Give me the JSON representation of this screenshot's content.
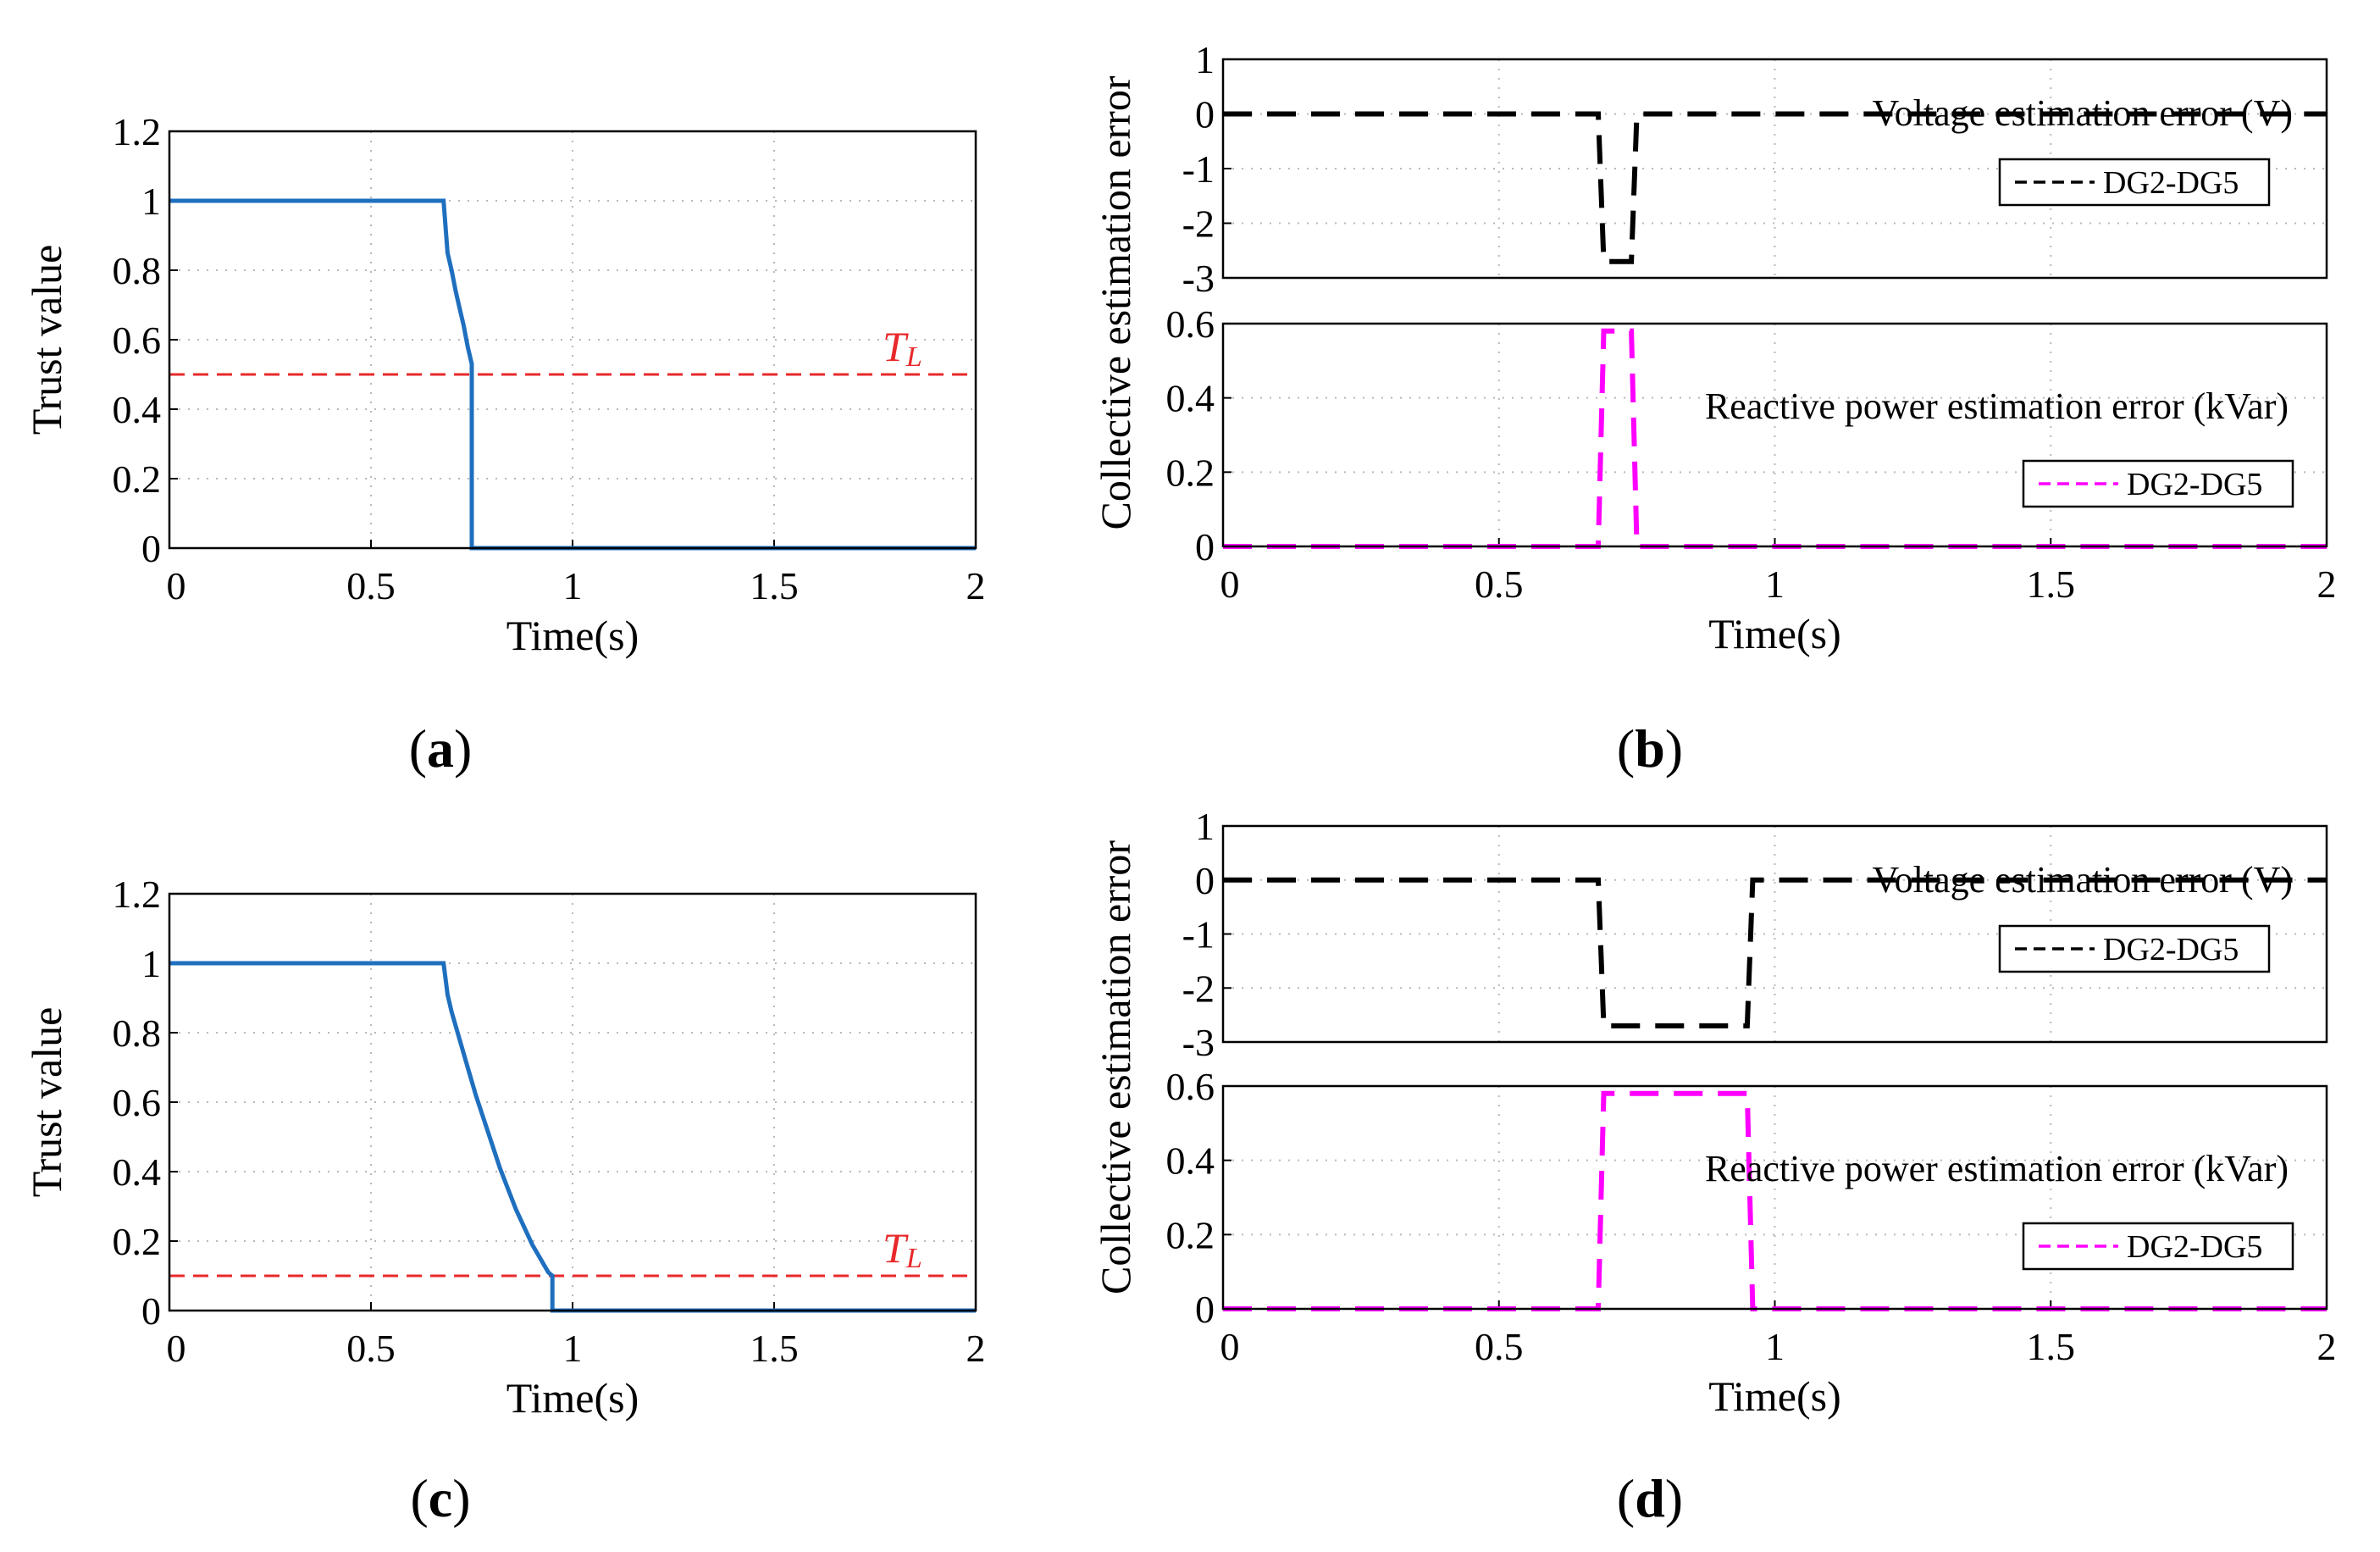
{
  "captions": [
    "(a)",
    "(b)",
    "(c)",
    "(d)"
  ],
  "chart_data": [
    {
      "id": "a",
      "type": "line",
      "xlabel": "Time(s)",
      "ylabel": "Trust value",
      "xlim": [
        0,
        2
      ],
      "ylim": [
        0,
        1.2
      ],
      "xticks": [
        0,
        0.5,
        1,
        1.5,
        2
      ],
      "xtick_labels": [
        "0",
        "0.5",
        "1",
        "1.5",
        "2"
      ],
      "yticks": [
        0,
        0.2,
        0.4,
        0.6,
        0.8,
        1,
        1.2
      ],
      "ytick_labels": [
        "0",
        "0.2",
        "0.4",
        "0.6",
        "0.8",
        "1",
        "1.2"
      ],
      "grid": true,
      "series": [
        {
          "color": "#1f6fbf",
          "style": "solid",
          "x": [
            0,
            0.68,
            0.69,
            0.7,
            0.71,
            0.72,
            0.73,
            0.74,
            0.75,
            0.75,
            2
          ],
          "y": [
            1,
            1,
            0.85,
            0.8,
            0.74,
            0.69,
            0.64,
            0.58,
            0.53,
            0,
            0
          ]
        }
      ],
      "threshold": {
        "y": 0.5,
        "color": "#e8292b",
        "label_main": "T",
        "label_sub": "L"
      }
    },
    {
      "id": "b",
      "type": "line",
      "ylabel": "Collective estimation error",
      "subplots": [
        {
          "xlim": [
            0,
            2
          ],
          "ylim": [
            -3,
            1
          ],
          "yticks": [
            -3,
            -2,
            -1,
            0,
            1
          ],
          "ytick_labels": [
            "-3",
            "-2",
            "-1",
            "0",
            "1"
          ],
          "annotation": "Voltage estimation error (V)",
          "legend": "DG2-DG5",
          "grid": true,
          "series": [
            {
              "name": "DG2-DG5",
              "color": "#000000",
              "style": "dashed",
              "x": [
                0,
                0.68,
                0.69,
                0.74,
                0.75,
                2
              ],
              "y": [
                0,
                0,
                -2.7,
                -2.7,
                0,
                0
              ]
            }
          ]
        },
        {
          "xlim": [
            0,
            2
          ],
          "ylim": [
            0,
            0.6
          ],
          "yticks": [
            0,
            0.2,
            0.4,
            0.6
          ],
          "ytick_labels": [
            "0",
            "0.2",
            "0.4",
            "0.6"
          ],
          "annotation": "Reactive power estimation error (kVar)",
          "legend": "DG2-DG5",
          "grid": true,
          "xticks": [
            0,
            0.5,
            1,
            1.5,
            2
          ],
          "xtick_labels": [
            "0",
            "0.5",
            "1",
            "1.5",
            "2"
          ],
          "xlabel": "Time(s)",
          "series": [
            {
              "name": "DG2-DG5",
              "color": "#ff00ff",
              "style": "dashed",
              "x": [
                0,
                0.68,
                0.69,
                0.74,
                0.75,
                2
              ],
              "y": [
                0,
                0,
                0.58,
                0.58,
                0,
                0
              ]
            }
          ]
        }
      ]
    },
    {
      "id": "c",
      "type": "line",
      "xlabel": "Time(s)",
      "ylabel": "Trust value",
      "xlim": [
        0,
        2
      ],
      "ylim": [
        0,
        1.2
      ],
      "xticks": [
        0,
        0.5,
        1,
        1.5,
        2
      ],
      "xtick_labels": [
        "0",
        "0.5",
        "1",
        "1.5",
        "2"
      ],
      "yticks": [
        0,
        0.2,
        0.4,
        0.6,
        0.8,
        1,
        1.2
      ],
      "ytick_labels": [
        "0",
        "0.2",
        "0.4",
        "0.6",
        "0.8",
        "1",
        "1.2"
      ],
      "grid": true,
      "series": [
        {
          "color": "#1f6fbf",
          "style": "solid",
          "x": [
            0,
            0.68,
            0.69,
            0.7,
            0.72,
            0.74,
            0.76,
            0.78,
            0.8,
            0.82,
            0.84,
            0.86,
            0.88,
            0.9,
            0.92,
            0.94,
            0.95,
            0.95,
            2
          ],
          "y": [
            1,
            1,
            0.91,
            0.86,
            0.78,
            0.7,
            0.62,
            0.55,
            0.48,
            0.41,
            0.35,
            0.29,
            0.24,
            0.19,
            0.15,
            0.11,
            0.1,
            0,
            0
          ]
        }
      ],
      "threshold": {
        "y": 0.1,
        "color": "#e8292b",
        "label_main": "T",
        "label_sub": "L"
      }
    },
    {
      "id": "d",
      "type": "line",
      "ylabel": "Collective estimation error",
      "subplots": [
        {
          "xlim": [
            0,
            2
          ],
          "ylim": [
            -3,
            1
          ],
          "yticks": [
            -3,
            -2,
            -1,
            0,
            1
          ],
          "ytick_labels": [
            "-3",
            "-2",
            "-1",
            "0",
            "1"
          ],
          "annotation": "Voltage estimation error (V)",
          "legend": "DG2-DG5",
          "grid": true,
          "series": [
            {
              "name": "DG2-DG5",
              "color": "#000000",
              "style": "dashed",
              "x": [
                0,
                0.68,
                0.69,
                0.95,
                0.96,
                2
              ],
              "y": [
                0,
                0,
                -2.7,
                -2.7,
                0,
                0
              ]
            }
          ]
        },
        {
          "xlim": [
            0,
            2
          ],
          "ylim": [
            0,
            0.6
          ],
          "yticks": [
            0,
            0.2,
            0.4,
            0.6
          ],
          "ytick_labels": [
            "0",
            "0.2",
            "0.4",
            "0.6"
          ],
          "annotation": "Reactive power estimation error (kVar)",
          "legend": "DG2-DG5",
          "grid": true,
          "xticks": [
            0,
            0.5,
            1,
            1.5,
            2
          ],
          "xtick_labels": [
            "0",
            "0.5",
            "1",
            "1.5",
            "2"
          ],
          "xlabel": "Time(s)",
          "series": [
            {
              "name": "DG2-DG5",
              "color": "#ff00ff",
              "style": "dashed",
              "x": [
                0,
                0.68,
                0.69,
                0.95,
                0.96,
                2
              ],
              "y": [
                0,
                0,
                0.58,
                0.58,
                0,
                0
              ]
            }
          ]
        }
      ]
    }
  ]
}
